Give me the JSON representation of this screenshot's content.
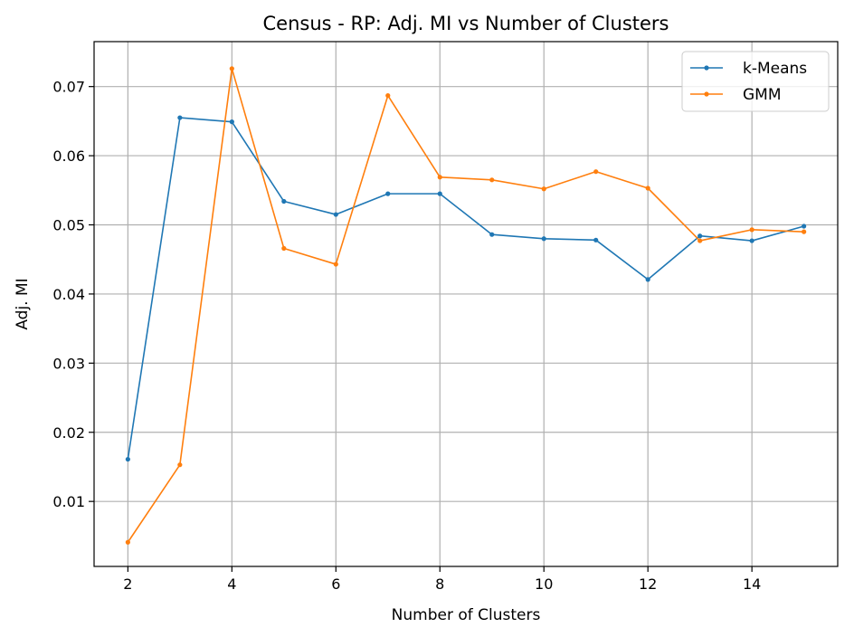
{
  "chart_data": {
    "type": "line",
    "title": "Census - RP: Adj. MI vs Number of Clusters",
    "xlabel": "Number of Clusters",
    "ylabel": "Adj. MI",
    "x": [
      2,
      3,
      4,
      5,
      6,
      7,
      8,
      9,
      10,
      11,
      12,
      13,
      14,
      15
    ],
    "xlim": [
      1.35,
      15.65
    ],
    "ylim": [
      0.0006,
      0.0765
    ],
    "xticks": [
      2,
      4,
      6,
      8,
      10,
      12,
      14
    ],
    "yticks": [
      0.01,
      0.02,
      0.03,
      0.04,
      0.05,
      0.06,
      0.07
    ],
    "xtick_labels": [
      "2",
      "4",
      "6",
      "8",
      "10",
      "12",
      "14"
    ],
    "ytick_labels": [
      "0.01",
      "0.02",
      "0.03",
      "0.04",
      "0.05",
      "0.06",
      "0.07"
    ],
    "grid": true,
    "legend_position": "top-right",
    "series": [
      {
        "name": "k-Means",
        "color": "#1f77b4",
        "values": [
          0.0161,
          0.0655,
          0.0649,
          0.0534,
          0.0515,
          0.0545,
          0.0545,
          0.0486,
          0.048,
          0.0478,
          0.0421,
          0.0484,
          0.0477,
          0.0498
        ]
      },
      {
        "name": "GMM",
        "color": "#ff7f0e",
        "values": [
          0.0041,
          0.0153,
          0.0726,
          0.0466,
          0.0443,
          0.0687,
          0.0569,
          0.0565,
          0.0552,
          0.0577,
          0.0553,
          0.0477,
          0.0493,
          0.049
        ]
      }
    ]
  }
}
